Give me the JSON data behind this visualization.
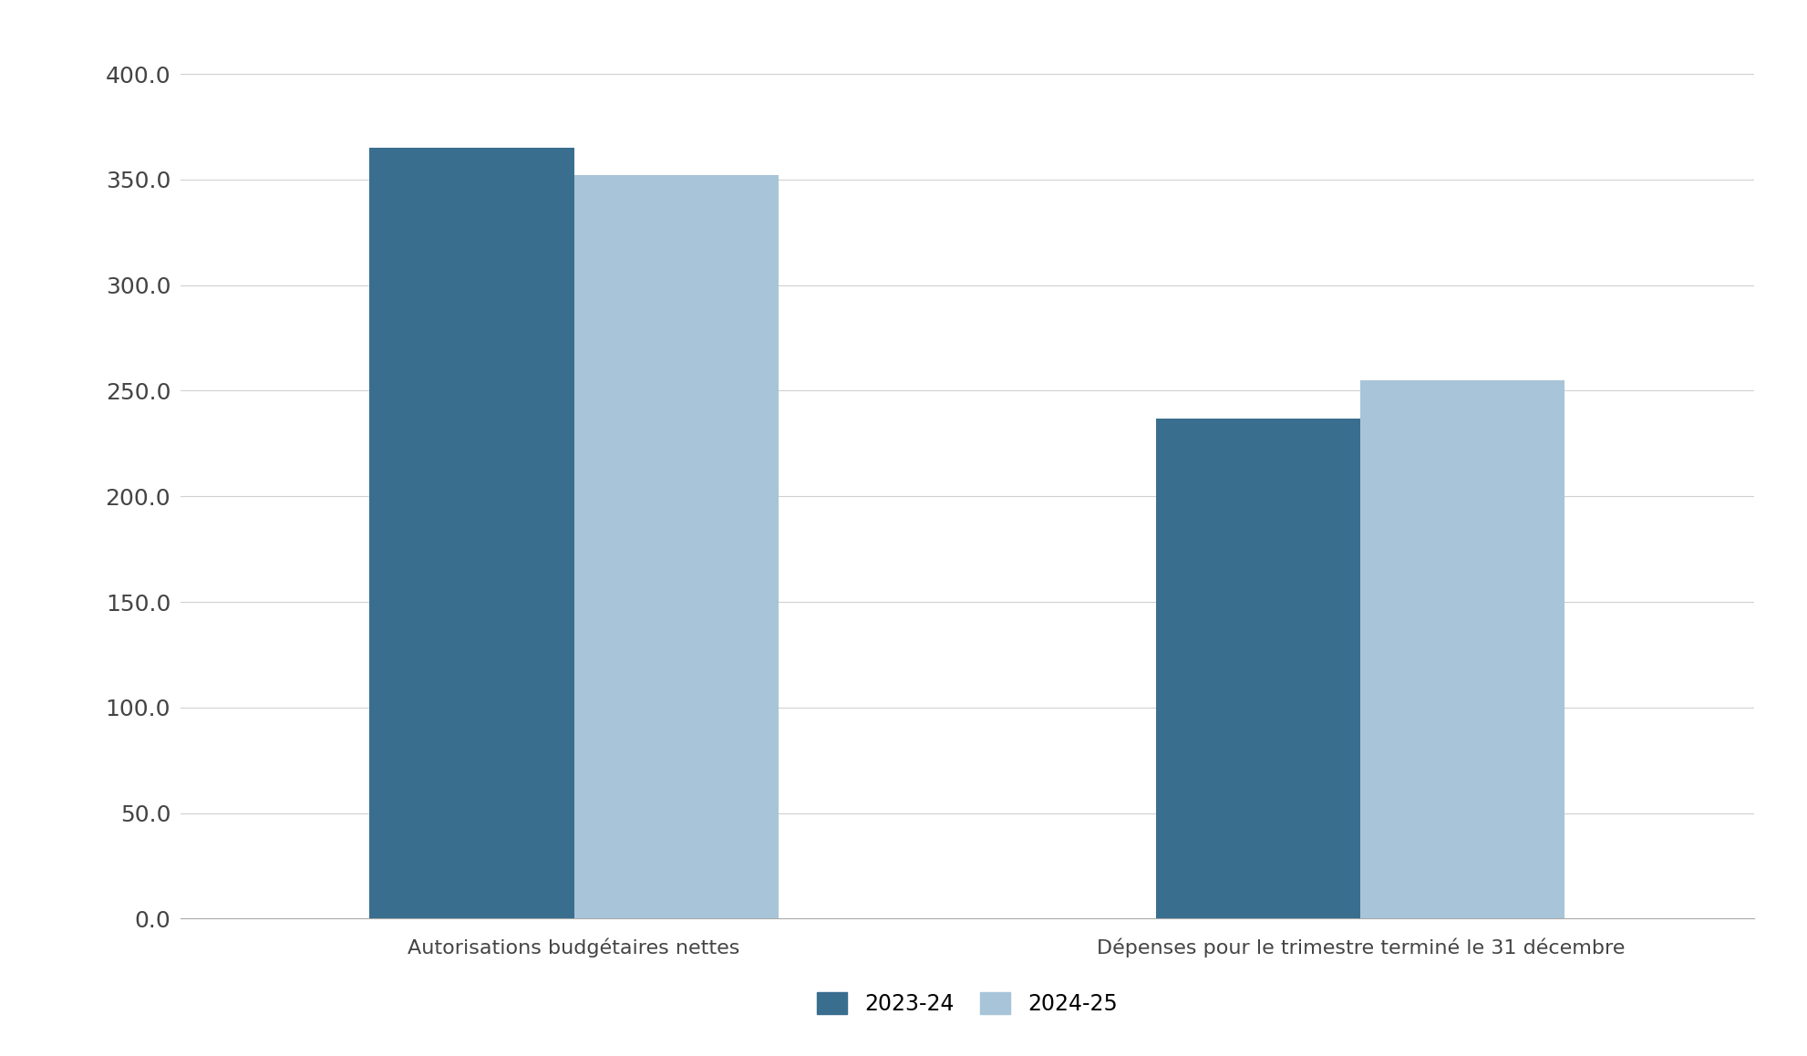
{
  "categories": [
    "Autorisations budgétaires nettes",
    "Dépenses pour le trimestre terminé le 31 décembre"
  ],
  "series": {
    "2023-24": [
      365.0,
      237.0
    ],
    "2024-25": [
      352.0,
      255.0
    ]
  },
  "colors": {
    "2023-24": "#3A6E8F",
    "2024-25": "#A8C4D8"
  },
  "legend_labels": [
    "2023-24",
    "2024-25"
  ],
  "ylim": [
    0,
    420
  ],
  "yticks": [
    0.0,
    50.0,
    100.0,
    150.0,
    200.0,
    250.0,
    300.0,
    350.0,
    400.0
  ],
  "bar_width": 0.13,
  "group_centers": [
    0.25,
    0.75
  ],
  "xlim": [
    0.0,
    1.0
  ],
  "background_color": "#ffffff",
  "grid_color": "#d0d0d0",
  "tick_label_fontsize": 18,
  "legend_fontsize": 17,
  "x_label_fontsize": 16
}
